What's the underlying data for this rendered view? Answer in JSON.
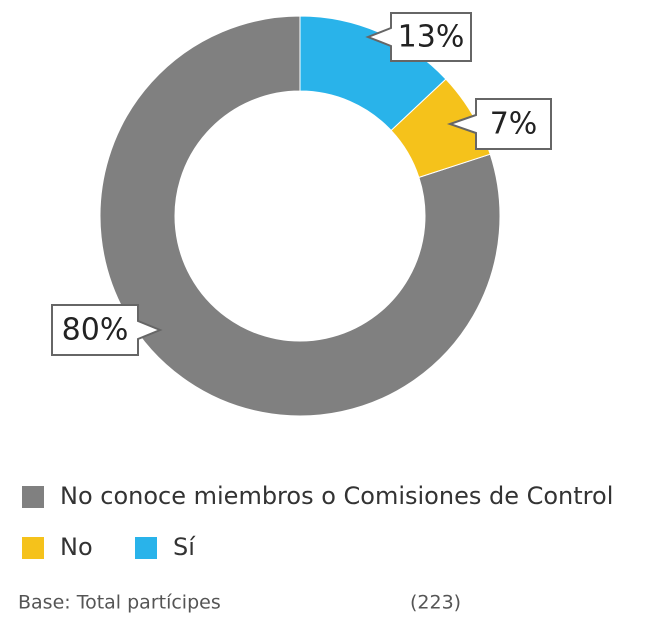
{
  "chart_data": {
    "type": "donut",
    "categories": [
      "No conoce  miembros o Comisiones de Control",
      "No",
      "Sí"
    ],
    "values": [
      80,
      7,
      13
    ],
    "value_labels": [
      "80%",
      "7%",
      "13%"
    ],
    "colors": [
      "#808080",
      "#f5c21b",
      "#29b3ea"
    ],
    "footnote": "Base: Total partícipes",
    "base_n": "(223)"
  }
}
